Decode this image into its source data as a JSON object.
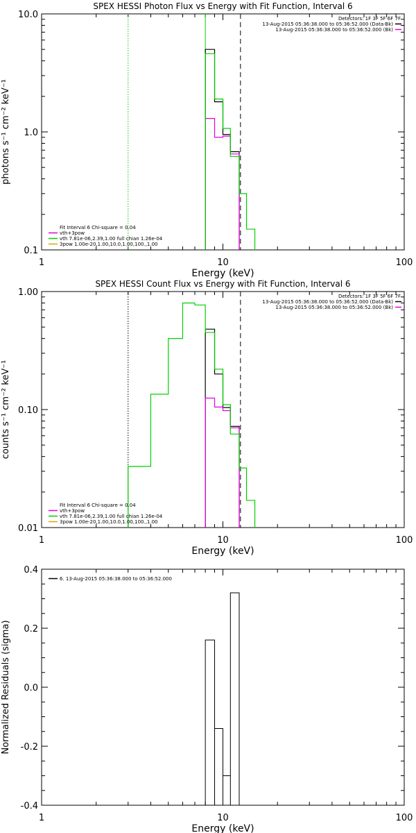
{
  "colors": {
    "black": "#000000",
    "green": "#00d000",
    "magenta": "#e000e0",
    "orange": "#e0a000"
  },
  "chart_data": [
    {
      "type": "line",
      "title": "SPEX HESSI Photon Flux vs Energy with Fit Function, Interval 6",
      "xlabel": "Energy (keV)",
      "ylabel": "photons s⁻¹ cm⁻² keV⁻¹",
      "xscale": "log",
      "yscale": "log",
      "xlim": [
        1,
        100
      ],
      "ylim": [
        0.1,
        10
      ],
      "xticks": [
        {
          "v": 1,
          "label": "1"
        },
        {
          "v": 10,
          "label": "10"
        },
        {
          "v": 100,
          "label": "100"
        }
      ],
      "yticks": [
        {
          "v": 0.1,
          "label": "0.1"
        },
        {
          "v": 1,
          "label": "1.0"
        },
        {
          "v": 10,
          "label": "10.0"
        }
      ],
      "vlines": [
        {
          "x": 3.0,
          "style": "dotted",
          "color": "#00d000"
        },
        {
          "x": 8.0,
          "style": "solid",
          "color": "#00d000"
        },
        {
          "x": 12.5,
          "style": "dashed",
          "color": "#000000"
        }
      ],
      "info_lines": [
        "Detectors: 1F 3F 5F 6F 7F",
        "13-Aug-2015 05:36:38.000 to 05:36:52.000 (Data-Bk)",
        "13-Aug-2015 05:36:38.000 to 05:36:52.000 (Bk)"
      ],
      "info_swatches": [
        "#000000",
        "#e000e0"
      ],
      "legend_lines": [
        {
          "text": "Fit Interval 6   Chi-square = 0.04",
          "color": null
        },
        {
          "text": "vth+3pow",
          "color": "#e000e0"
        },
        {
          "text": "vth 7.81e-06,2.39,1.00  full chian 1.26e-04",
          "color": "#00d000"
        },
        {
          "text": "3pow 1.00e-20,1.00,10.0,1.00,100.,1.00",
          "color": "#e0a000"
        }
      ],
      "series": [
        {
          "color": "#000000",
          "edges": [
            8.0,
            9.0,
            10.0,
            11.0,
            12.3
          ],
          "values": [
            5.0,
            1.8,
            0.95,
            0.68
          ]
        },
        {
          "color": "#e000e0",
          "edges": [
            8.0,
            9.0,
            10.0,
            11.0,
            12.3
          ],
          "values": [
            1.3,
            0.9,
            0.92,
            0.65
          ]
        },
        {
          "color": "#00d000",
          "edges": [
            8.0,
            9.0,
            10.0,
            11.0,
            12.3,
            13.5,
            15.0
          ],
          "values": [
            4.6,
            1.9,
            1.07,
            0.62,
            0.3,
            0.15
          ]
        }
      ]
    },
    {
      "type": "line",
      "title": "SPEX HESSI Count Flux vs Energy with Fit Function, Interval 6",
      "xlabel": "Energy (keV)",
      "ylabel": "counts s⁻¹ cm⁻² keV⁻¹",
      "xscale": "log",
      "yscale": "log",
      "xlim": [
        1,
        100
      ],
      "ylim": [
        0.01,
        1.0
      ],
      "xticks": [
        {
          "v": 1,
          "label": "1"
        },
        {
          "v": 10,
          "label": "10"
        },
        {
          "v": 100,
          "label": "100"
        }
      ],
      "yticks": [
        {
          "v": 0.01,
          "label": "0.01"
        },
        {
          "v": 0.1,
          "label": "0.10"
        },
        {
          "v": 1,
          "label": "1.00"
        }
      ],
      "vlines": [
        {
          "x": 3.0,
          "style": "dotted",
          "color": "#000000"
        },
        {
          "x": 12.5,
          "style": "dashed",
          "color": "#000000"
        }
      ],
      "info_lines": [
        "Detectors: 1F 3F 5F 6F 7F",
        "13-Aug-2015 05:36:38.000 to 05:36:52.000 (Data-Bk)",
        "13-Aug-2015 05:36:38.000 to 05:36:52.000 (Bk)"
      ],
      "info_swatches": [
        "#000000",
        "#e000e0"
      ],
      "legend_lines": [
        {
          "text": "Fit Interval 6   Chi-square = 0.04",
          "color": null
        },
        {
          "text": "vth+3pow",
          "color": "#e000e0"
        },
        {
          "text": "vth 7.81e-06,2.39,1.00  full chian 1.26e-04",
          "color": "#00d000"
        },
        {
          "text": "3pow 1.00e-20,1.00,10.0,1.00,100.,1.00",
          "color": "#e0a000"
        }
      ],
      "series": [
        {
          "color": "#000000",
          "edges": [
            8.0,
            9.0,
            10.0,
            11.0,
            12.3
          ],
          "values": [
            0.48,
            0.2,
            0.104,
            0.072
          ]
        },
        {
          "color": "#e000e0",
          "edges": [
            8.0,
            9.0,
            10.0,
            11.0,
            12.3
          ],
          "values": [
            0.125,
            0.105,
            0.098,
            0.07
          ]
        },
        {
          "color": "#00d000",
          "edges": [
            3.0,
            4.0,
            5.0,
            6.0,
            7.0,
            8.0,
            9.0,
            10.0,
            11.0,
            12.3,
            13.5,
            15.0
          ],
          "values": [
            0.033,
            0.135,
            0.4,
            0.8,
            0.77,
            0.45,
            0.22,
            0.11,
            0.062,
            0.032,
            0.017
          ]
        }
      ]
    },
    {
      "type": "line",
      "title": "",
      "xlabel": "Energy (keV)",
      "ylabel": "Normalized Residuals (sigma)",
      "xscale": "log",
      "yscale": "linear",
      "xlim": [
        1,
        100
      ],
      "ylim": [
        -0.4,
        0.4
      ],
      "xticks": [
        {
          "v": 1,
          "label": "1"
        },
        {
          "v": 10,
          "label": "10"
        },
        {
          "v": 100,
          "label": "100"
        }
      ],
      "yticks": [
        {
          "v": -0.4,
          "label": "-0.4"
        },
        {
          "v": -0.2,
          "label": "-0.2"
        },
        {
          "v": 0.0,
          "label": "0.0"
        },
        {
          "v": 0.2,
          "label": "0.2"
        },
        {
          "v": 0.4,
          "label": "0.4"
        }
      ],
      "vlines": [],
      "info_lines": [],
      "info_swatches": [],
      "legend_lines": [
        {
          "text": "6. 13-Aug-2015 05:36:38.000 to 05:36:52.000",
          "color": "#000000"
        }
      ],
      "series": [
        {
          "color": "#000000",
          "residual": true,
          "edges": [
            8.0,
            9.0,
            10.0,
            11.0,
            12.3
          ],
          "values": [
            0.16,
            -0.14,
            -0.3,
            0.32
          ]
        }
      ]
    }
  ]
}
